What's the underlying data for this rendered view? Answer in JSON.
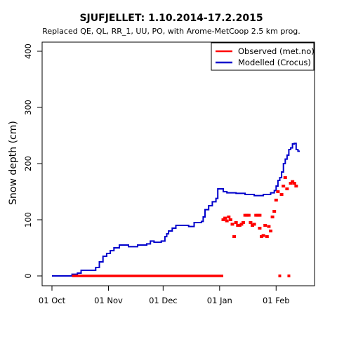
{
  "chart_data": {
    "type": "line",
    "title": "SJUFJELLET: 1.10.2014-17.2.2015",
    "subtitle": "Replaced QE, QL, RR_1, UU, PO,  with Arome-MetCoop 2.5 km prog.",
    "xlabel": "",
    "ylabel": "Snow depth (cm)",
    "xlim": [
      "2014-10-01",
      "2015-02-19"
    ],
    "ylim": [
      0,
      400
    ],
    "x_ticks": [
      {
        "date": "2014-10-01",
        "label": "01 Oct"
      },
      {
        "date": "2014-11-01",
        "label": "01 Nov"
      },
      {
        "date": "2014-12-01",
        "label": "01 Dec"
      },
      {
        "date": "2015-01-01",
        "label": "01 Jan"
      },
      {
        "date": "2015-02-01",
        "label": "01 Feb"
      }
    ],
    "y_ticks": [
      0,
      100,
      200,
      300,
      400
    ],
    "legend": {
      "position": "top-right"
    },
    "series": [
      {
        "name": "Observed (met.no)",
        "color": "#ff0000",
        "style": "points",
        "points": [
          [
            "2014-10-12",
            0
          ],
          [
            "2014-10-20",
            0
          ],
          [
            "2014-10-28",
            0
          ],
          [
            "2014-11-05",
            0
          ],
          [
            "2014-11-13",
            0
          ],
          [
            "2014-11-21",
            0
          ],
          [
            "2014-11-29",
            0
          ],
          [
            "2014-12-07",
            0
          ],
          [
            "2014-12-15",
            0
          ],
          [
            "2014-12-23",
            0
          ],
          [
            "2014-12-31",
            0
          ],
          [
            "2015-01-03",
            0
          ],
          [
            "2015-01-03",
            100
          ],
          [
            "2015-01-04",
            103
          ],
          [
            "2015-01-05",
            98
          ],
          [
            "2015-01-06",
            105
          ],
          [
            "2015-01-07",
            100
          ],
          [
            "2015-01-08",
            92
          ],
          [
            "2015-01-09",
            70
          ],
          [
            "2015-01-10",
            95
          ],
          [
            "2015-01-11",
            90
          ],
          [
            "2015-01-12",
            90
          ],
          [
            "2015-01-13",
            92
          ],
          [
            "2015-01-14",
            95
          ],
          [
            "2015-01-15",
            108
          ],
          [
            "2015-01-16",
            108
          ],
          [
            "2015-01-17",
            108
          ],
          [
            "2015-01-18",
            95
          ],
          [
            "2015-01-19",
            90
          ],
          [
            "2015-01-20",
            92
          ],
          [
            "2015-01-21",
            108
          ],
          [
            "2015-01-22",
            108
          ],
          [
            "2015-01-23",
            108
          ],
          [
            "2015-01-23",
            85
          ],
          [
            "2015-01-24",
            70
          ],
          [
            "2015-01-25",
            72
          ],
          [
            "2015-01-26",
            90
          ],
          [
            "2015-01-27",
            70
          ],
          [
            "2015-01-28",
            88
          ],
          [
            "2015-01-29",
            80
          ],
          [
            "2015-01-30",
            105
          ],
          [
            "2015-01-31",
            115
          ],
          [
            "2015-02-01",
            135
          ],
          [
            "2015-02-02",
            150
          ],
          [
            "2015-02-03",
            0
          ],
          [
            "2015-02-04",
            145
          ],
          [
            "2015-02-05",
            160
          ],
          [
            "2015-02-06",
            175
          ],
          [
            "2015-02-07",
            155
          ],
          [
            "2015-02-08",
            0
          ],
          [
            "2015-02-09",
            165
          ],
          [
            "2015-02-10",
            168
          ],
          [
            "2015-02-11",
            165
          ],
          [
            "2015-02-12",
            160
          ]
        ]
      },
      {
        "name": "Modelled (Crocus)",
        "color": "#0000cc",
        "style": "line",
        "points": [
          [
            "2014-10-01",
            0
          ],
          [
            "2014-10-11",
            0
          ],
          [
            "2014-10-12",
            3
          ],
          [
            "2014-10-15",
            5
          ],
          [
            "2014-10-17",
            10
          ],
          [
            "2014-10-24",
            10
          ],
          [
            "2014-10-25",
            15
          ],
          [
            "2014-10-27",
            25
          ],
          [
            "2014-10-29",
            35
          ],
          [
            "2014-10-31",
            40
          ],
          [
            "2014-11-02",
            45
          ],
          [
            "2014-11-04",
            50
          ],
          [
            "2014-11-07",
            55
          ],
          [
            "2014-11-12",
            52
          ],
          [
            "2014-11-17",
            55
          ],
          [
            "2014-11-22",
            57
          ],
          [
            "2014-11-24",
            62
          ],
          [
            "2014-11-26",
            60
          ],
          [
            "2014-11-30",
            62
          ],
          [
            "2014-12-02",
            70
          ],
          [
            "2014-12-03",
            75
          ],
          [
            "2014-12-04",
            80
          ],
          [
            "2014-12-06",
            85
          ],
          [
            "2014-12-08",
            90
          ],
          [
            "2014-12-12",
            90
          ],
          [
            "2014-12-15",
            88
          ],
          [
            "2014-12-18",
            95
          ],
          [
            "2014-12-22",
            97
          ],
          [
            "2014-12-23",
            105
          ],
          [
            "2014-12-24",
            118
          ],
          [
            "2014-12-26",
            125
          ],
          [
            "2014-12-28",
            132
          ],
          [
            "2014-12-30",
            138
          ],
          [
            "2014-12-31",
            155
          ],
          [
            "2015-01-03",
            150
          ],
          [
            "2015-01-05",
            148
          ],
          [
            "2015-01-10",
            147
          ],
          [
            "2015-01-15",
            145
          ],
          [
            "2015-01-20",
            143
          ],
          [
            "2015-01-25",
            145
          ],
          [
            "2015-01-29",
            148
          ],
          [
            "2015-01-31",
            152
          ],
          [
            "2015-02-01",
            160
          ],
          [
            "2015-02-02",
            170
          ],
          [
            "2015-02-03",
            175
          ],
          [
            "2015-02-04",
            185
          ],
          [
            "2015-02-05",
            200
          ],
          [
            "2015-02-06",
            208
          ],
          [
            "2015-02-07",
            215
          ],
          [
            "2015-02-08",
            225
          ],
          [
            "2015-02-09",
            228
          ],
          [
            "2015-02-10",
            235
          ],
          [
            "2015-02-11",
            236
          ],
          [
            "2015-02-12",
            225
          ],
          [
            "2015-02-13",
            222
          ],
          [
            "2015-02-14",
            222
          ]
        ]
      }
    ]
  }
}
